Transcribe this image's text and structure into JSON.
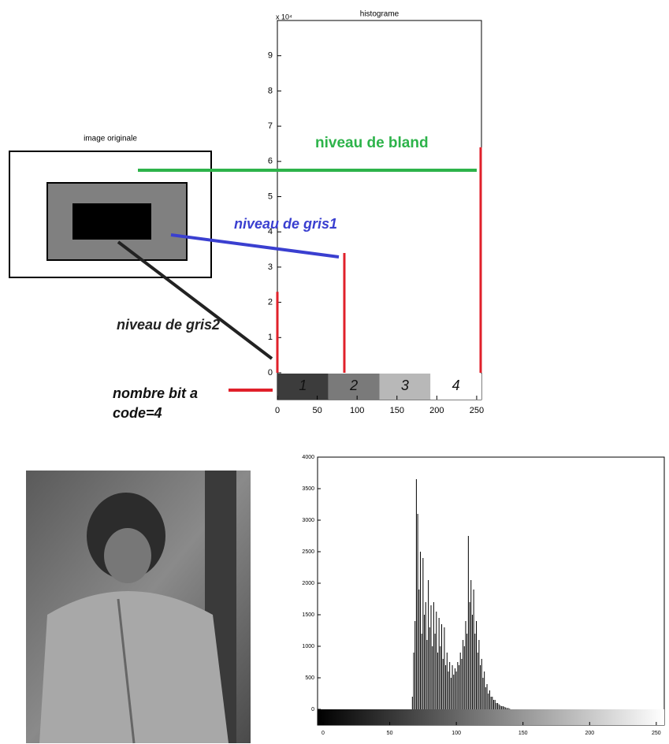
{
  "chart_data": [
    {
      "type": "bar",
      "title": "histograme",
      "y_scale_label": "x 10⁴",
      "inset_title": "image originale",
      "x": [
        0,
        84,
        255
      ],
      "values": [
        2.3,
        3.4,
        6.4
      ],
      "color": "#e0202a",
      "xlim": [
        0,
        256
      ],
      "xticks": [
        0,
        50,
        100,
        150,
        200,
        250
      ],
      "ylim": [
        0,
        10
      ],
      "yticks": [
        0,
        1,
        2,
        3,
        4,
        5,
        6,
        7,
        8,
        9
      ],
      "level_labels": [
        "1",
        "2",
        "3",
        "4"
      ],
      "annotations": [
        {
          "text": "niveau de bland",
          "color": "#2db34a"
        },
        {
          "text": "niveau de gris1",
          "color": "#3a3fd0"
        },
        {
          "text": "niveau de gris2",
          "color": "#222222"
        },
        {
          "text": [
            "nombre bit a",
            "code=4"
          ],
          "color": "#111111"
        }
      ]
    },
    {
      "type": "histogram",
      "color": "#000000",
      "x": [
        66,
        67,
        68,
        69,
        70,
        71,
        72,
        73,
        74,
        75,
        76,
        77,
        78,
        79,
        80,
        81,
        82,
        83,
        84,
        85,
        86,
        87,
        88,
        89,
        90,
        91,
        92,
        93,
        94,
        95,
        96,
        97,
        98,
        99,
        100,
        101,
        102,
        103,
        104,
        105,
        106,
        107,
        108,
        109,
        110,
        111,
        112,
        113,
        114,
        115,
        116,
        117,
        118,
        119,
        120,
        121,
        122,
        123,
        124,
        125,
        126,
        127,
        128,
        129,
        130,
        131,
        132,
        133,
        134,
        135,
        136,
        137,
        138,
        139,
        140
      ],
      "values": [
        0,
        200,
        900,
        1400,
        3650,
        3100,
        1900,
        2500,
        1200,
        2400,
        1500,
        1700,
        1100,
        2050,
        1300,
        1650,
        1000,
        1700,
        1200,
        1550,
        900,
        1450,
        1000,
        1350,
        800,
        1300,
        700,
        900,
        600,
        750,
        500,
        700,
        550,
        650,
        600,
        750,
        700,
        900,
        800,
        1100,
        1000,
        1400,
        1200,
        2750,
        1700,
        2050,
        1500,
        1900,
        1200,
        1400,
        900,
        1100,
        700,
        800,
        500,
        600,
        350,
        400,
        250,
        300,
        200,
        200,
        150,
        150,
        100,
        100,
        80,
        60,
        50,
        50,
        40,
        30,
        20,
        20,
        10
      ],
      "xlim": [
        0,
        256
      ],
      "xticks": [
        0,
        50,
        100,
        150,
        200,
        250
      ],
      "ylim": [
        0,
        4000
      ],
      "yticks": [
        0,
        500,
        1000,
        1500,
        2000,
        2500,
        3000,
        3500,
        4000
      ]
    }
  ]
}
